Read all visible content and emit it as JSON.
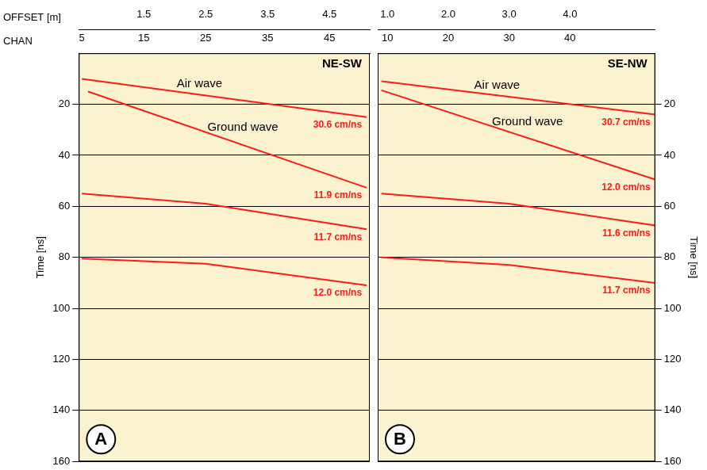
{
  "chart_data": [
    {
      "type": "line",
      "panel": "A",
      "title": "NE-SW",
      "x_label": "OFFSET [m]",
      "x2_label": "CHAN",
      "y_label": "Time [ns]",
      "xlim": [
        0.45,
        5.15
      ],
      "xticks": [
        1.5,
        2.5,
        3.5,
        4.5
      ],
      "x2lim": [
        4.5,
        51.5
      ],
      "x2ticks": [
        5,
        15,
        25,
        35,
        45
      ],
      "ylim": [
        0,
        160
      ],
      "yticks": [
        20,
        40,
        60,
        80,
        100,
        120,
        140,
        160
      ],
      "grid": true,
      "series": [
        {
          "name": "30.6 cm/ns",
          "color": "#ff1a1a",
          "x": [
            0.5,
            5.1
          ],
          "values": [
            10,
            25
          ]
        },
        {
          "name": "11.9 cm/ns",
          "color": "#ff1a1a",
          "x": [
            0.6,
            5.1
          ],
          "values": [
            15,
            52.7
          ]
        },
        {
          "name": "11.7 cm/ns",
          "color": "#ff1a1a",
          "x": [
            0.5,
            2.5,
            5.1
          ],
          "values": [
            55,
            59,
            69
          ]
        },
        {
          "name": "12.0 cm/ns",
          "color": "#ff1a1a",
          "x": [
            0.5,
            2.5,
            5.1
          ],
          "values": [
            80.5,
            82.5,
            91
          ]
        }
      ],
      "annotations": [
        {
          "text": "Air wave",
          "x": 2.4,
          "y": 12
        },
        {
          "text": "Ground wave",
          "x": 3.1,
          "y": 29
        }
      ]
    },
    {
      "type": "line",
      "panel": "B",
      "title": "SE-NW",
      "y_label": "Time [ns]",
      "xlim": [
        0.84,
        5.4
      ],
      "xticks": [
        {
          "value": 1,
          "label": "1.0"
        },
        {
          "value": 2,
          "label": "2.0"
        },
        {
          "value": 3,
          "label": "3.0"
        },
        {
          "value": 4,
          "label": "4.0"
        }
      ],
      "x2lim": [
        8.4,
        54
      ],
      "x2ticks": [
        10,
        20,
        30,
        40
      ],
      "ylim": [
        0,
        160
      ],
      "yticks": [
        20,
        40,
        60,
        80,
        100,
        120,
        140,
        160
      ],
      "grid": true,
      "series": [
        {
          "name": "30.7 cm/ns",
          "color": "#ff1a1a",
          "x": [
            0.9,
            5.4
          ],
          "values": [
            11,
            24
          ]
        },
        {
          "name": "12.0 cm/ns",
          "color": "#ff1a1a",
          "x": [
            0.9,
            5.4
          ],
          "values": [
            14.5,
            49.5
          ]
        },
        {
          "name": "11.6 cm/ns",
          "color": "#ff1a1a",
          "x": [
            0.9,
            3,
            5.4
          ],
          "values": [
            55,
            59,
            67.5
          ]
        },
        {
          "name": "11.7 cm/ns",
          "color": "#ff1a1a",
          "x": [
            0.9,
            3,
            5.4
          ],
          "values": [
            80,
            83,
            90
          ]
        }
      ],
      "annotations": [
        {
          "text": "Air wave",
          "x": 2.8,
          "y": 12.5
        },
        {
          "text": "Ground wave",
          "x": 3.3,
          "y": 27
        }
      ]
    }
  ]
}
